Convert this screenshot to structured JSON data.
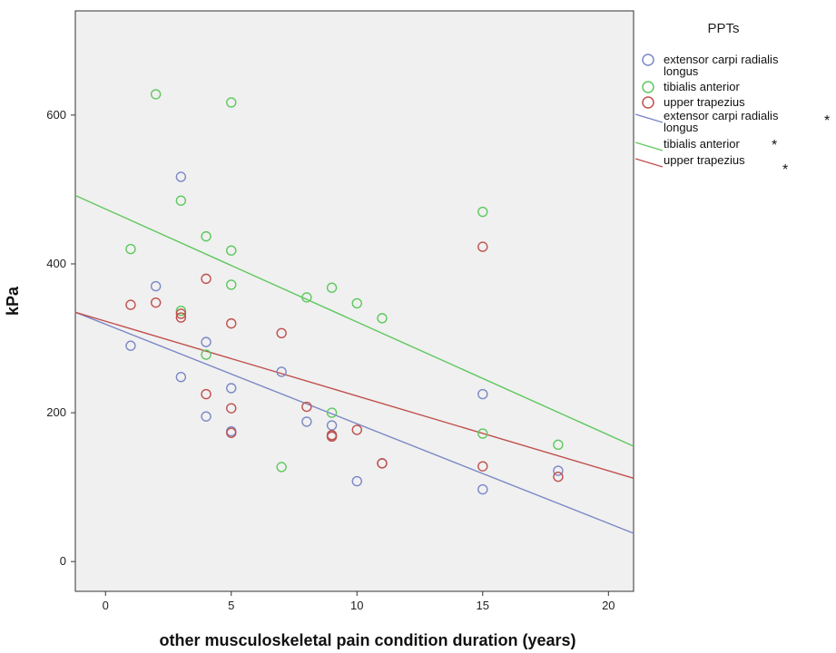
{
  "chart_data": {
    "type": "scatter",
    "xlabel": "other musculoskeletal pain condition duration (years)",
    "ylabel": "kPa",
    "xlim": [
      -1.2,
      21
    ],
    "ylim": [
      -40,
      740
    ],
    "x_ticks": [
      0,
      5,
      10,
      15,
      20
    ],
    "y_ticks": [
      0,
      200,
      400,
      600
    ],
    "x_tick_labels": [
      "0",
      "5",
      "10",
      "15",
      "20"
    ],
    "y_tick_labels": [
      "0",
      "200",
      "400",
      "600"
    ],
    "grid": false,
    "plot_background": "#f0f0f0",
    "legend": {
      "title": "PPTs",
      "placement": "right",
      "points": [
        {
          "label": "extensor carpi radialis longus",
          "lines": [
            "extensor carpi radialis",
            "longus"
          ],
          "color": "#7b88c6"
        },
        {
          "label": "tibialis anterior",
          "lines": [
            "tibialis anterior"
          ],
          "color": "#5ec85e"
        },
        {
          "label": "upper trapezius",
          "lines": [
            "upper trapezius"
          ],
          "color": "#c0504d"
        }
      ],
      "fit_lines": [
        {
          "label": "extensor carpi radialis longus",
          "lines": [
            "extensor carpi radialis",
            "longus"
          ],
          "color": "#7b88c6",
          "marker": "*"
        },
        {
          "label": "tibialis anterior",
          "lines": [
            "tibialis anterior"
          ],
          "color": "#5ec85e",
          "marker": "*"
        },
        {
          "label": "upper trapezius",
          "lines": [
            "upper trapezius"
          ],
          "color": "#c0504d",
          "marker": "*"
        }
      ]
    },
    "series": [
      {
        "name": "extensor carpi radialis longus",
        "color": "#7b88c6",
        "x": [
          1,
          2,
          3,
          3,
          4,
          4,
          5,
          5,
          7,
          8,
          9,
          9,
          10,
          11,
          15,
          15,
          18
        ],
        "y": [
          290,
          370,
          517,
          248,
          295,
          195,
          233,
          175,
          255,
          188,
          183,
          168,
          108,
          132,
          225,
          97,
          122
        ],
        "fit": {
          "x": [
            -1.2,
            21
          ],
          "y": [
            335,
            38
          ]
        }
      },
      {
        "name": "tibialis anterior",
        "color": "#5ec85e",
        "x": [
          1,
          2,
          3,
          3,
          4,
          4,
          5,
          5,
          5,
          7,
          8,
          9,
          9,
          10,
          11,
          15,
          15,
          18
        ],
        "y": [
          420,
          628,
          485,
          337,
          437,
          278,
          418,
          372,
          617,
          127,
          355,
          368,
          200,
          347,
          327,
          470,
          172,
          157
        ],
        "fit": {
          "x": [
            -1.2,
            21
          ],
          "y": [
            492,
            155
          ]
        }
      },
      {
        "name": "upper trapezius",
        "color": "#c0504d",
        "x": [
          1,
          2,
          3,
          3,
          4,
          4,
          5,
          5,
          5,
          7,
          8,
          9,
          9,
          10,
          11,
          15,
          15,
          18
        ],
        "y": [
          345,
          348,
          333,
          328,
          380,
          225,
          320,
          206,
          173,
          307,
          208,
          170,
          168,
          177,
          132,
          423,
          128,
          114
        ],
        "fit": {
          "x": [
            -1.2,
            21
          ],
          "y": [
            335,
            112
          ]
        }
      }
    ]
  }
}
